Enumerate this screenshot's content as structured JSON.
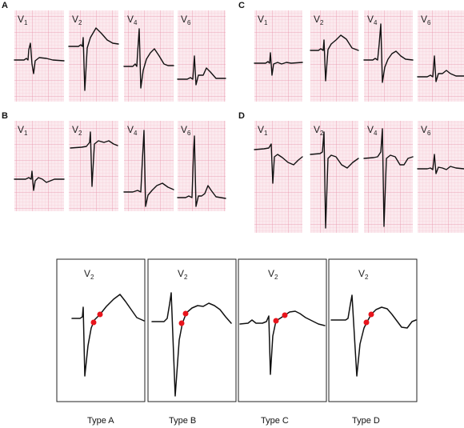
{
  "colors": {
    "grid_background": "#fbe9ee",
    "grid_minor": "#f3c3cf",
    "grid_major": "#e995aa",
    "trace": "#111111",
    "marker": "#e8141c"
  },
  "panels": [
    {
      "label": "A",
      "leads": [
        {
          "lead": "V",
          "sub": "1"
        },
        {
          "lead": "V",
          "sub": "2"
        },
        {
          "lead": "V",
          "sub": "4"
        },
        {
          "lead": "V",
          "sub": "6"
        }
      ]
    },
    {
      "label": "B",
      "leads": [
        {
          "lead": "V",
          "sub": "1"
        },
        {
          "lead": "V",
          "sub": "2"
        },
        {
          "lead": "V",
          "sub": "4"
        },
        {
          "lead": "V",
          "sub": "6"
        }
      ]
    },
    {
      "label": "C",
      "leads": [
        {
          "lead": "V",
          "sub": "1"
        },
        {
          "lead": "V",
          "sub": "2"
        },
        {
          "lead": "V",
          "sub": "4"
        },
        {
          "lead": "V",
          "sub": "6"
        }
      ]
    },
    {
      "label": "D",
      "leads": [
        {
          "lead": "V",
          "sub": "1"
        },
        {
          "lead": "V",
          "sub": "2"
        },
        {
          "lead": "V",
          "sub": "4"
        },
        {
          "lead": "V",
          "sub": "6"
        }
      ]
    }
  ],
  "types": [
    {
      "lead": "V",
      "sub": "2",
      "caption": "Type A",
      "marker_icon": "red-dot-marker"
    },
    {
      "lead": "V",
      "sub": "2",
      "caption": "Type B",
      "marker_icon": "red-dot-marker"
    },
    {
      "lead": "V",
      "sub": "2",
      "caption": "Type C",
      "marker_icon": "red-dot-marker"
    },
    {
      "lead": "V",
      "sub": "2",
      "caption": "Type D",
      "marker_icon": "red-dot-marker"
    }
  ]
}
